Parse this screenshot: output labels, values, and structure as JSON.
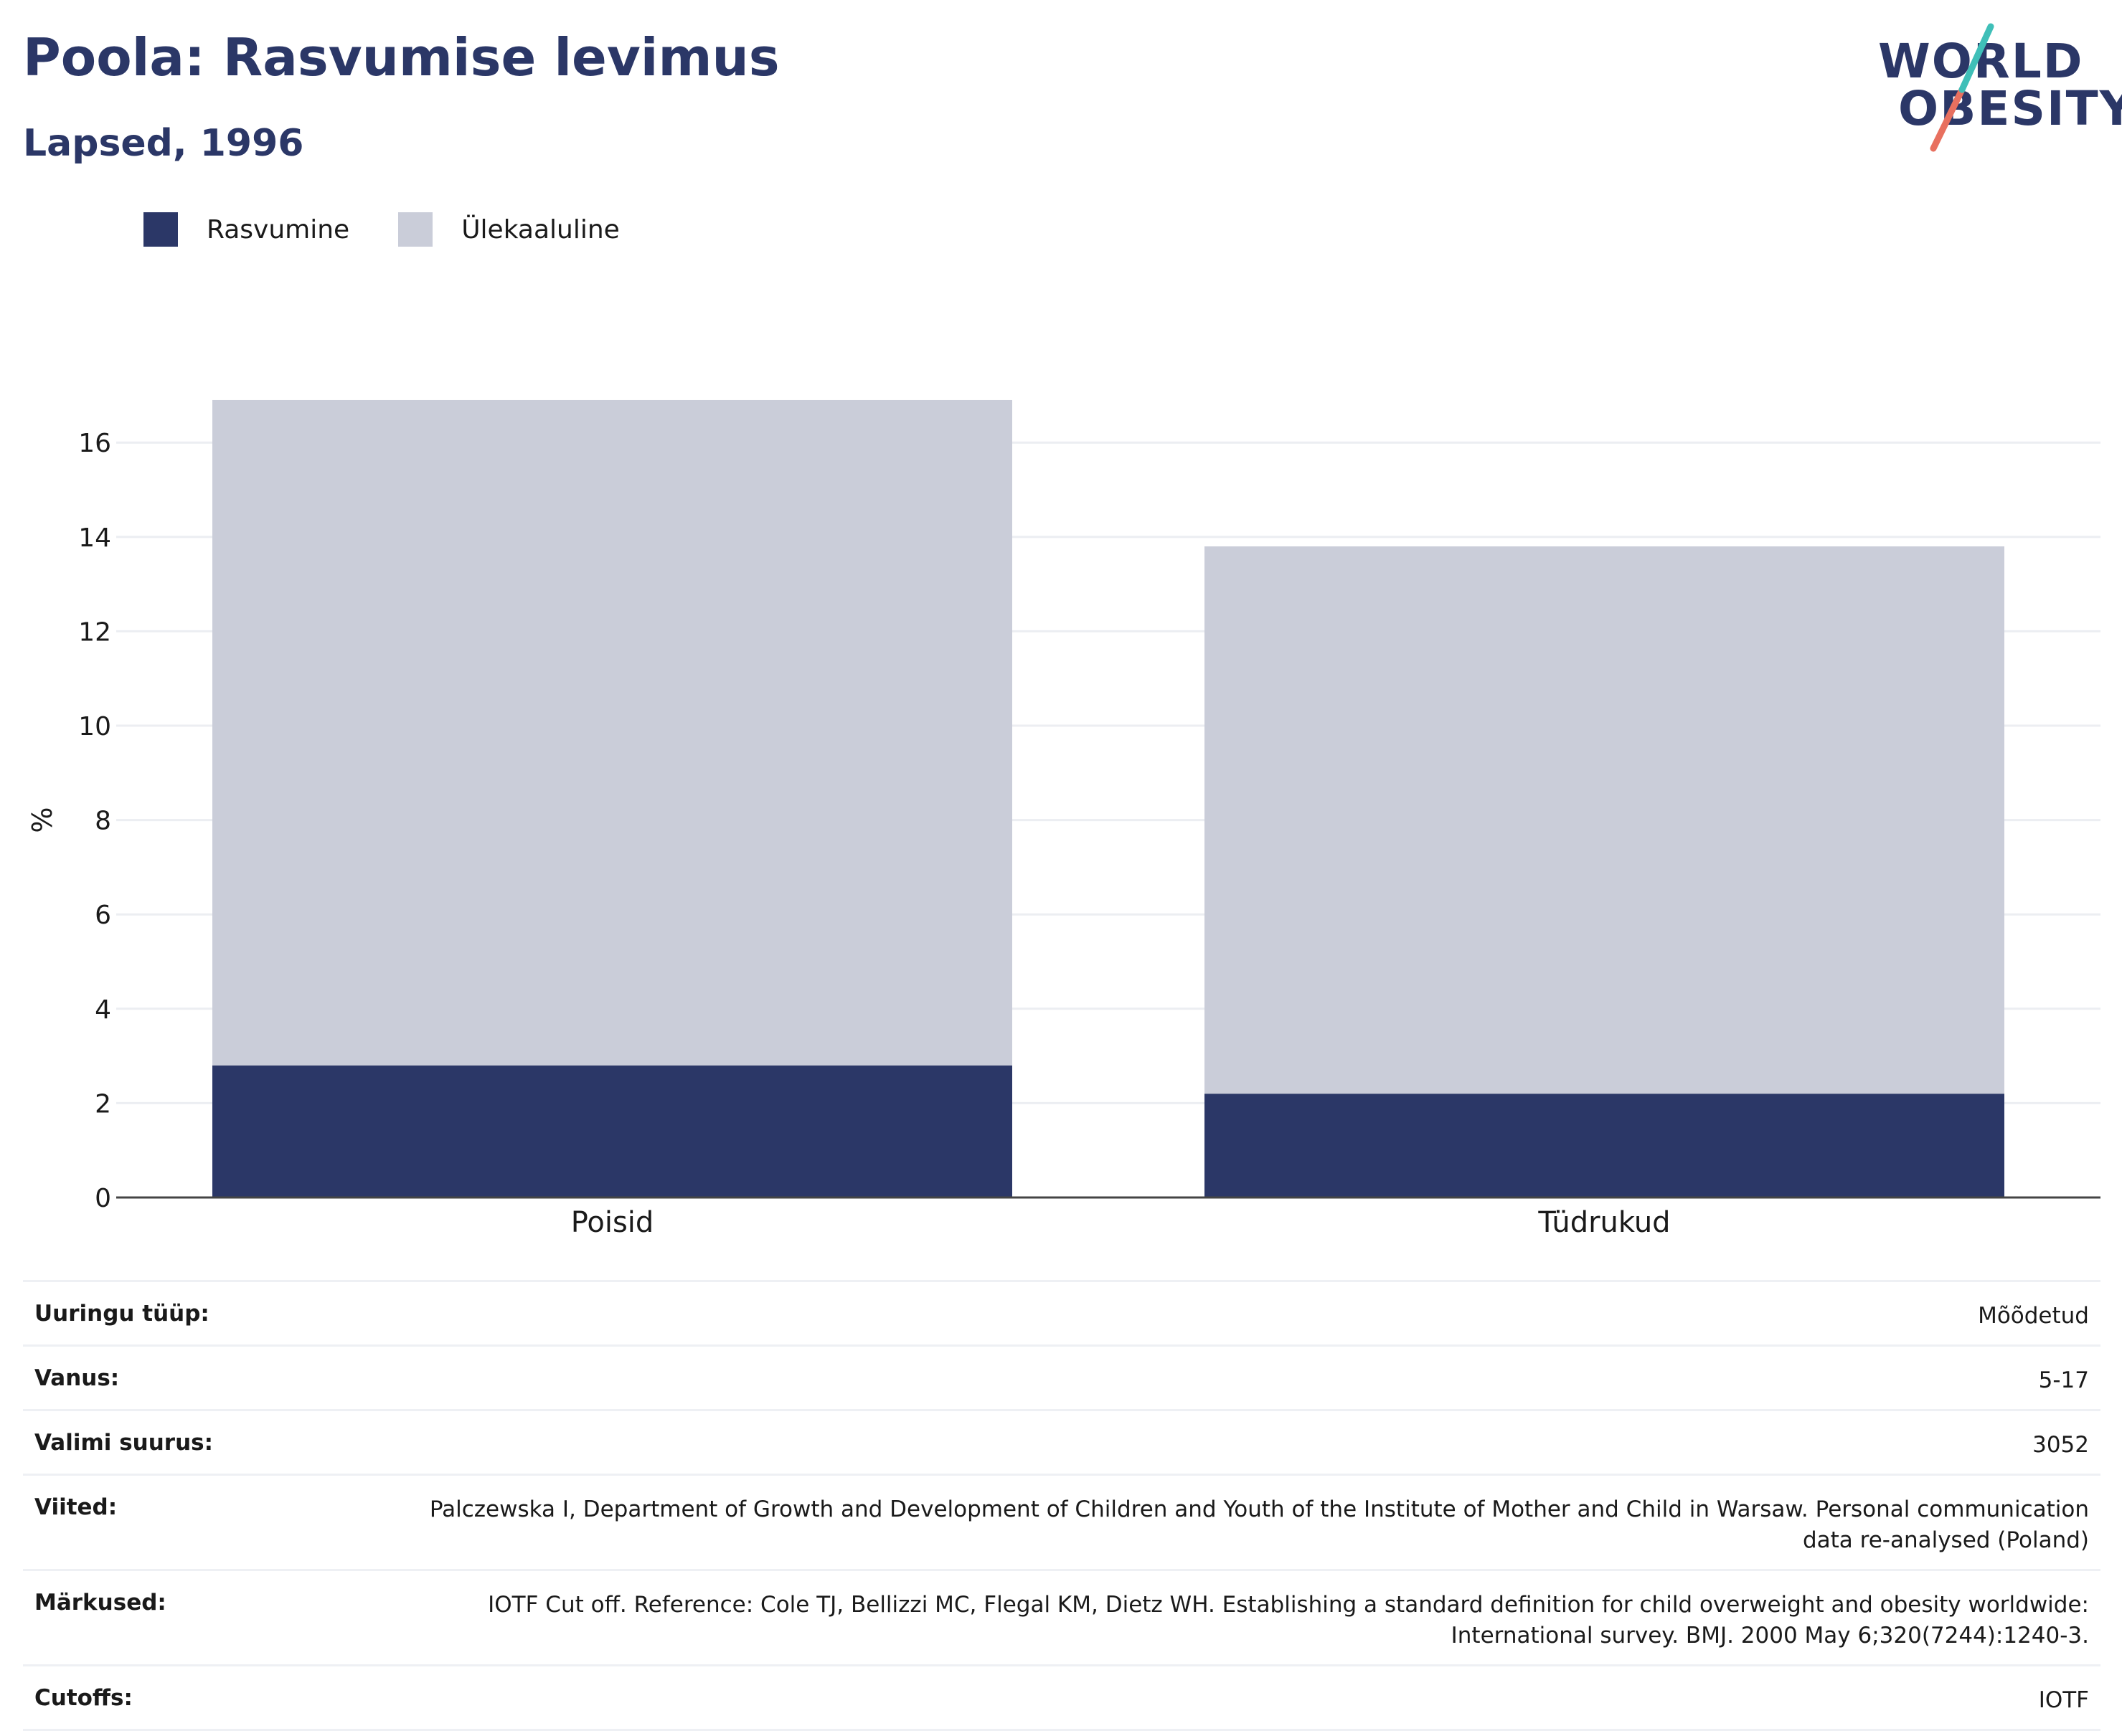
{
  "title": "Poola: Rasvumise levimus",
  "subtitle": "Lapsed, 1996",
  "logo": {
    "line1": "WORLD",
    "line2": "OBESITY"
  },
  "colors": {
    "obesity": "#2b3767",
    "overweight": "#cacdd9",
    "title": "#2b3767",
    "logo_teal": "#3fbfb8",
    "logo_coral": "#e8705f"
  },
  "chart_data": {
    "type": "bar",
    "stacked": true,
    "categories": [
      "Poisid",
      "Tüdrukud"
    ],
    "series": [
      {
        "name": "Rasvumine",
        "values": [
          2.8,
          2.2
        ]
      },
      {
        "name": "Ülekaaluline",
        "values": [
          14.1,
          11.6
        ]
      }
    ],
    "ylabel": "%",
    "ylim": [
      0,
      17.5
    ],
    "yticks": [
      0,
      2,
      4,
      6,
      8,
      10,
      12,
      14,
      16
    ],
    "grid": true,
    "legend": "top-left"
  },
  "meta": [
    {
      "label": "Uuringu tüüp:",
      "value": "Mõõdetud"
    },
    {
      "label": "Vanus:",
      "value": "5-17"
    },
    {
      "label": "Valimi suurus:",
      "value": "3052"
    },
    {
      "label": "Viited:",
      "value": "Palczewska I, Department of Growth and Development of Children and Youth of the Institute of Mother and Child in Warsaw. Personal communication data re-analysed (Poland)"
    },
    {
      "label": "Märkused:",
      "value": "IOTF Cut off. Reference: Cole TJ, Bellizzi MC, Flegal KM, Dietz WH. Establishing a standard definition for child overweight and obesity worldwide: International survey. BMJ. 2000 May 6;320(7244):1240-3."
    },
    {
      "label": "Cutoffs:",
      "value": "IOTF"
    }
  ]
}
